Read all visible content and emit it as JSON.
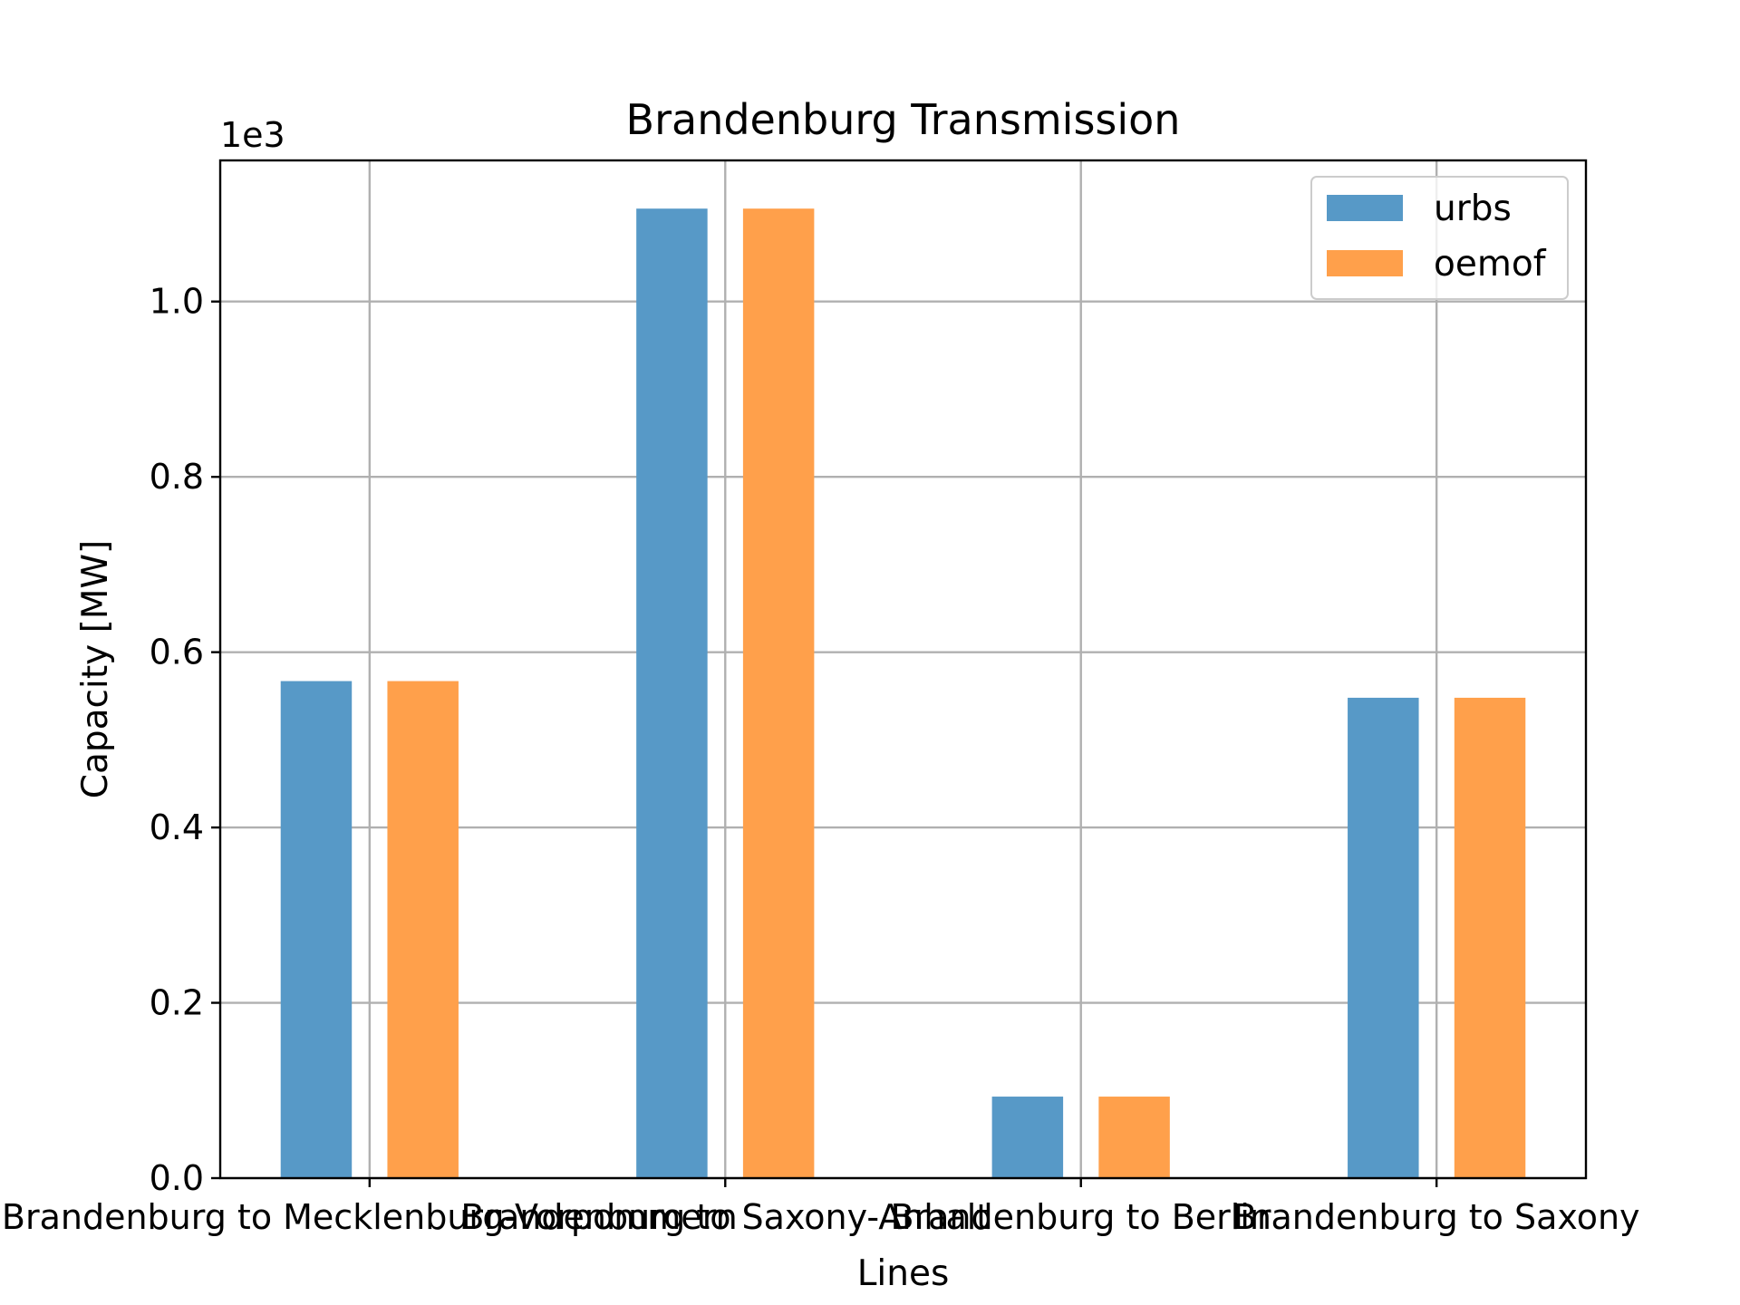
{
  "chart_data": {
    "type": "bar",
    "title": "Brandenburg Transmission",
    "xlabel": "Lines",
    "ylabel": "Capacity [MW]",
    "offset_label": "1e3",
    "categories": [
      "Brandenburg to Mecklenburg-Vorpommern",
      "Brandenburg to Saxony-Anhalt",
      "Brandenburg to Berlin",
      "Brandenburg to Saxony"
    ],
    "series": [
      {
        "name": "urbs",
        "color": "#5799c7",
        "values": [
          567,
          1106,
          93,
          548
        ]
      },
      {
        "name": "oemof",
        "color": "#ffa04b",
        "values": [
          567,
          1106,
          93,
          548
        ]
      }
    ],
    "ylim": [
      0,
      1161
    ],
    "yticks": [
      0,
      200,
      400,
      600,
      800,
      1000
    ],
    "ytick_labels": [
      "0.0",
      "0.2",
      "0.4",
      "0.6",
      "0.8",
      "1.0"
    ],
    "grid": true,
    "legend_position": "upper right"
  }
}
